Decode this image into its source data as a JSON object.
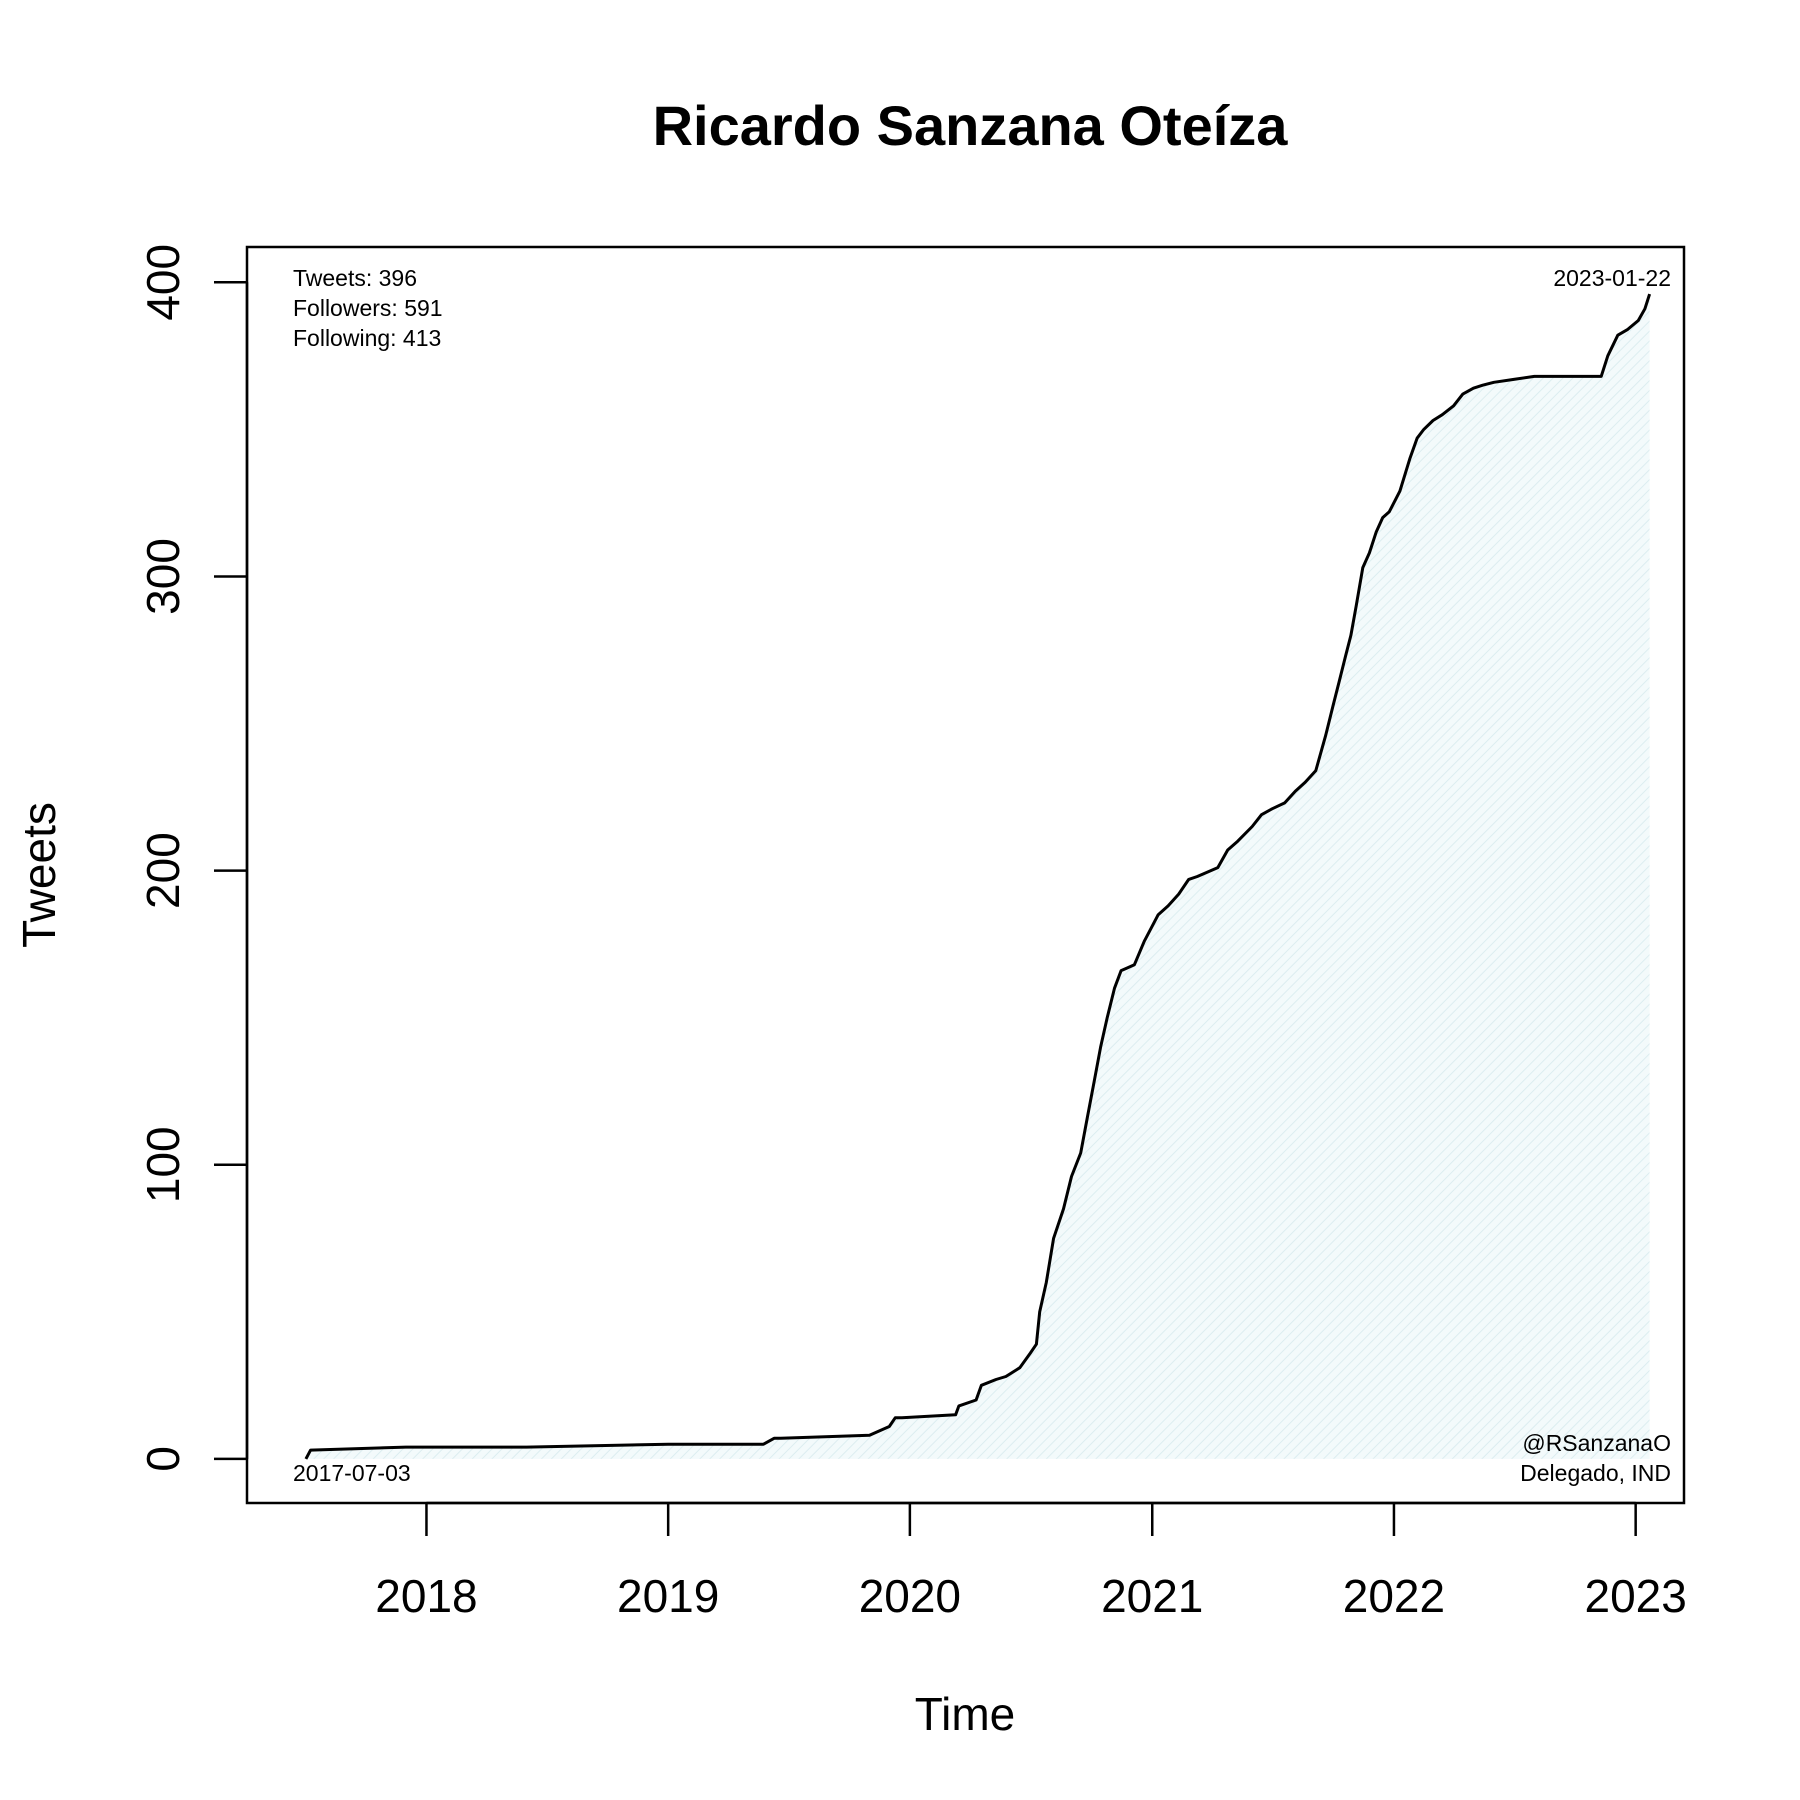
{
  "chart_data": {
    "type": "area",
    "title": "Ricardo Sanzana Oteíza",
    "xlabel": "Time",
    "ylabel": "Tweets",
    "xlim": [
      "2017-04-05",
      "2023-03-15"
    ],
    "ylim": [
      -15,
      412
    ],
    "x_ticks": [
      "2018-01-01",
      "2019-01-01",
      "2020-01-01",
      "2021-01-01",
      "2022-01-01",
      "2023-01-01"
    ],
    "x_tick_labels": [
      "2018",
      "2019",
      "2020",
      "2021",
      "2022",
      "2023"
    ],
    "y_ticks": [
      0,
      100,
      200,
      300,
      400
    ],
    "y_tick_labels": [
      "0",
      "100",
      "200",
      "300",
      "400"
    ],
    "grid": false,
    "line_color": "#000000",
    "fill_color": "#eaf5f7",
    "stats": {
      "tweets": "Tweets: 396",
      "followers": "Followers: 591",
      "following": "Following: 413"
    },
    "start_label": "2017-07-03",
    "end_label": "2023-01-22",
    "handle": "@RSanzanaO",
    "affiliation": "Delegado, IND",
    "series": [
      {
        "x": [
          "2017-07-03",
          "2017-07-10",
          "2017-12-01",
          "2018-06-01",
          "2019-01-01",
          "2019-05-25",
          "2019-06-10",
          "2019-06-20",
          "2019-11-01",
          "2019-12-01",
          "2019-12-10",
          "2019-12-20",
          "2020-03-10",
          "2020-03-15",
          "2020-04-10",
          "2020-04-18",
          "2020-05-10",
          "2020-05-25",
          "2020-06-15",
          "2020-07-01",
          "2020-07-10",
          "2020-07-15",
          "2020-07-25",
          "2020-08-05",
          "2020-08-20",
          "2020-09-01",
          "2020-09-15",
          "2020-09-25",
          "2020-10-05",
          "2020-10-15",
          "2020-10-25",
          "2020-11-05",
          "2020-11-15",
          "2020-11-25",
          "2020-12-05",
          "2020-12-20",
          "2021-01-10",
          "2021-01-25",
          "2021-02-10",
          "2021-02-25",
          "2021-03-10",
          "2021-04-10",
          "2021-04-25",
          "2021-05-10",
          "2021-06-01",
          "2021-06-15",
          "2021-07-01",
          "2021-07-20",
          "2021-08-05",
          "2021-08-20",
          "2021-09-05",
          "2021-09-20",
          "2021-10-01",
          "2021-10-10",
          "2021-10-20",
          "2021-10-28",
          "2021-11-05",
          "2021-11-15",
          "2021-11-25",
          "2021-12-05",
          "2021-12-15",
          "2021-12-25",
          "2022-01-10",
          "2022-01-25",
          "2022-02-05",
          "2022-02-15",
          "2022-03-01",
          "2022-03-15",
          "2022-04-01",
          "2022-04-15",
          "2022-05-01",
          "2022-05-15",
          "2022-06-01",
          "2022-07-01",
          "2022-08-01",
          "2022-11-10",
          "2022-11-20",
          "2022-12-05",
          "2022-12-20",
          "2023-01-05",
          "2023-01-15",
          "2023-01-22"
        ],
        "y": [
          0,
          3,
          4,
          4,
          5,
          5,
          7,
          7,
          8,
          11,
          14,
          14,
          15,
          18,
          20,
          25,
          27,
          28,
          31,
          36,
          39,
          50,
          60,
          75,
          85,
          96,
          104,
          116,
          128,
          140,
          150,
          160,
          166,
          167,
          168,
          176,
          185,
          188,
          192,
          197,
          198,
          201,
          207,
          210,
          215,
          219,
          221,
          223,
          227,
          230,
          234,
          246,
          256,
          264,
          273,
          280,
          290,
          303,
          308,
          315,
          320,
          322,
          329,
          340,
          347,
          350,
          353,
          355,
          358,
          362,
          364,
          365,
          366,
          367,
          368,
          368,
          375,
          382,
          384,
          387,
          391,
          396
        ]
      }
    ]
  }
}
